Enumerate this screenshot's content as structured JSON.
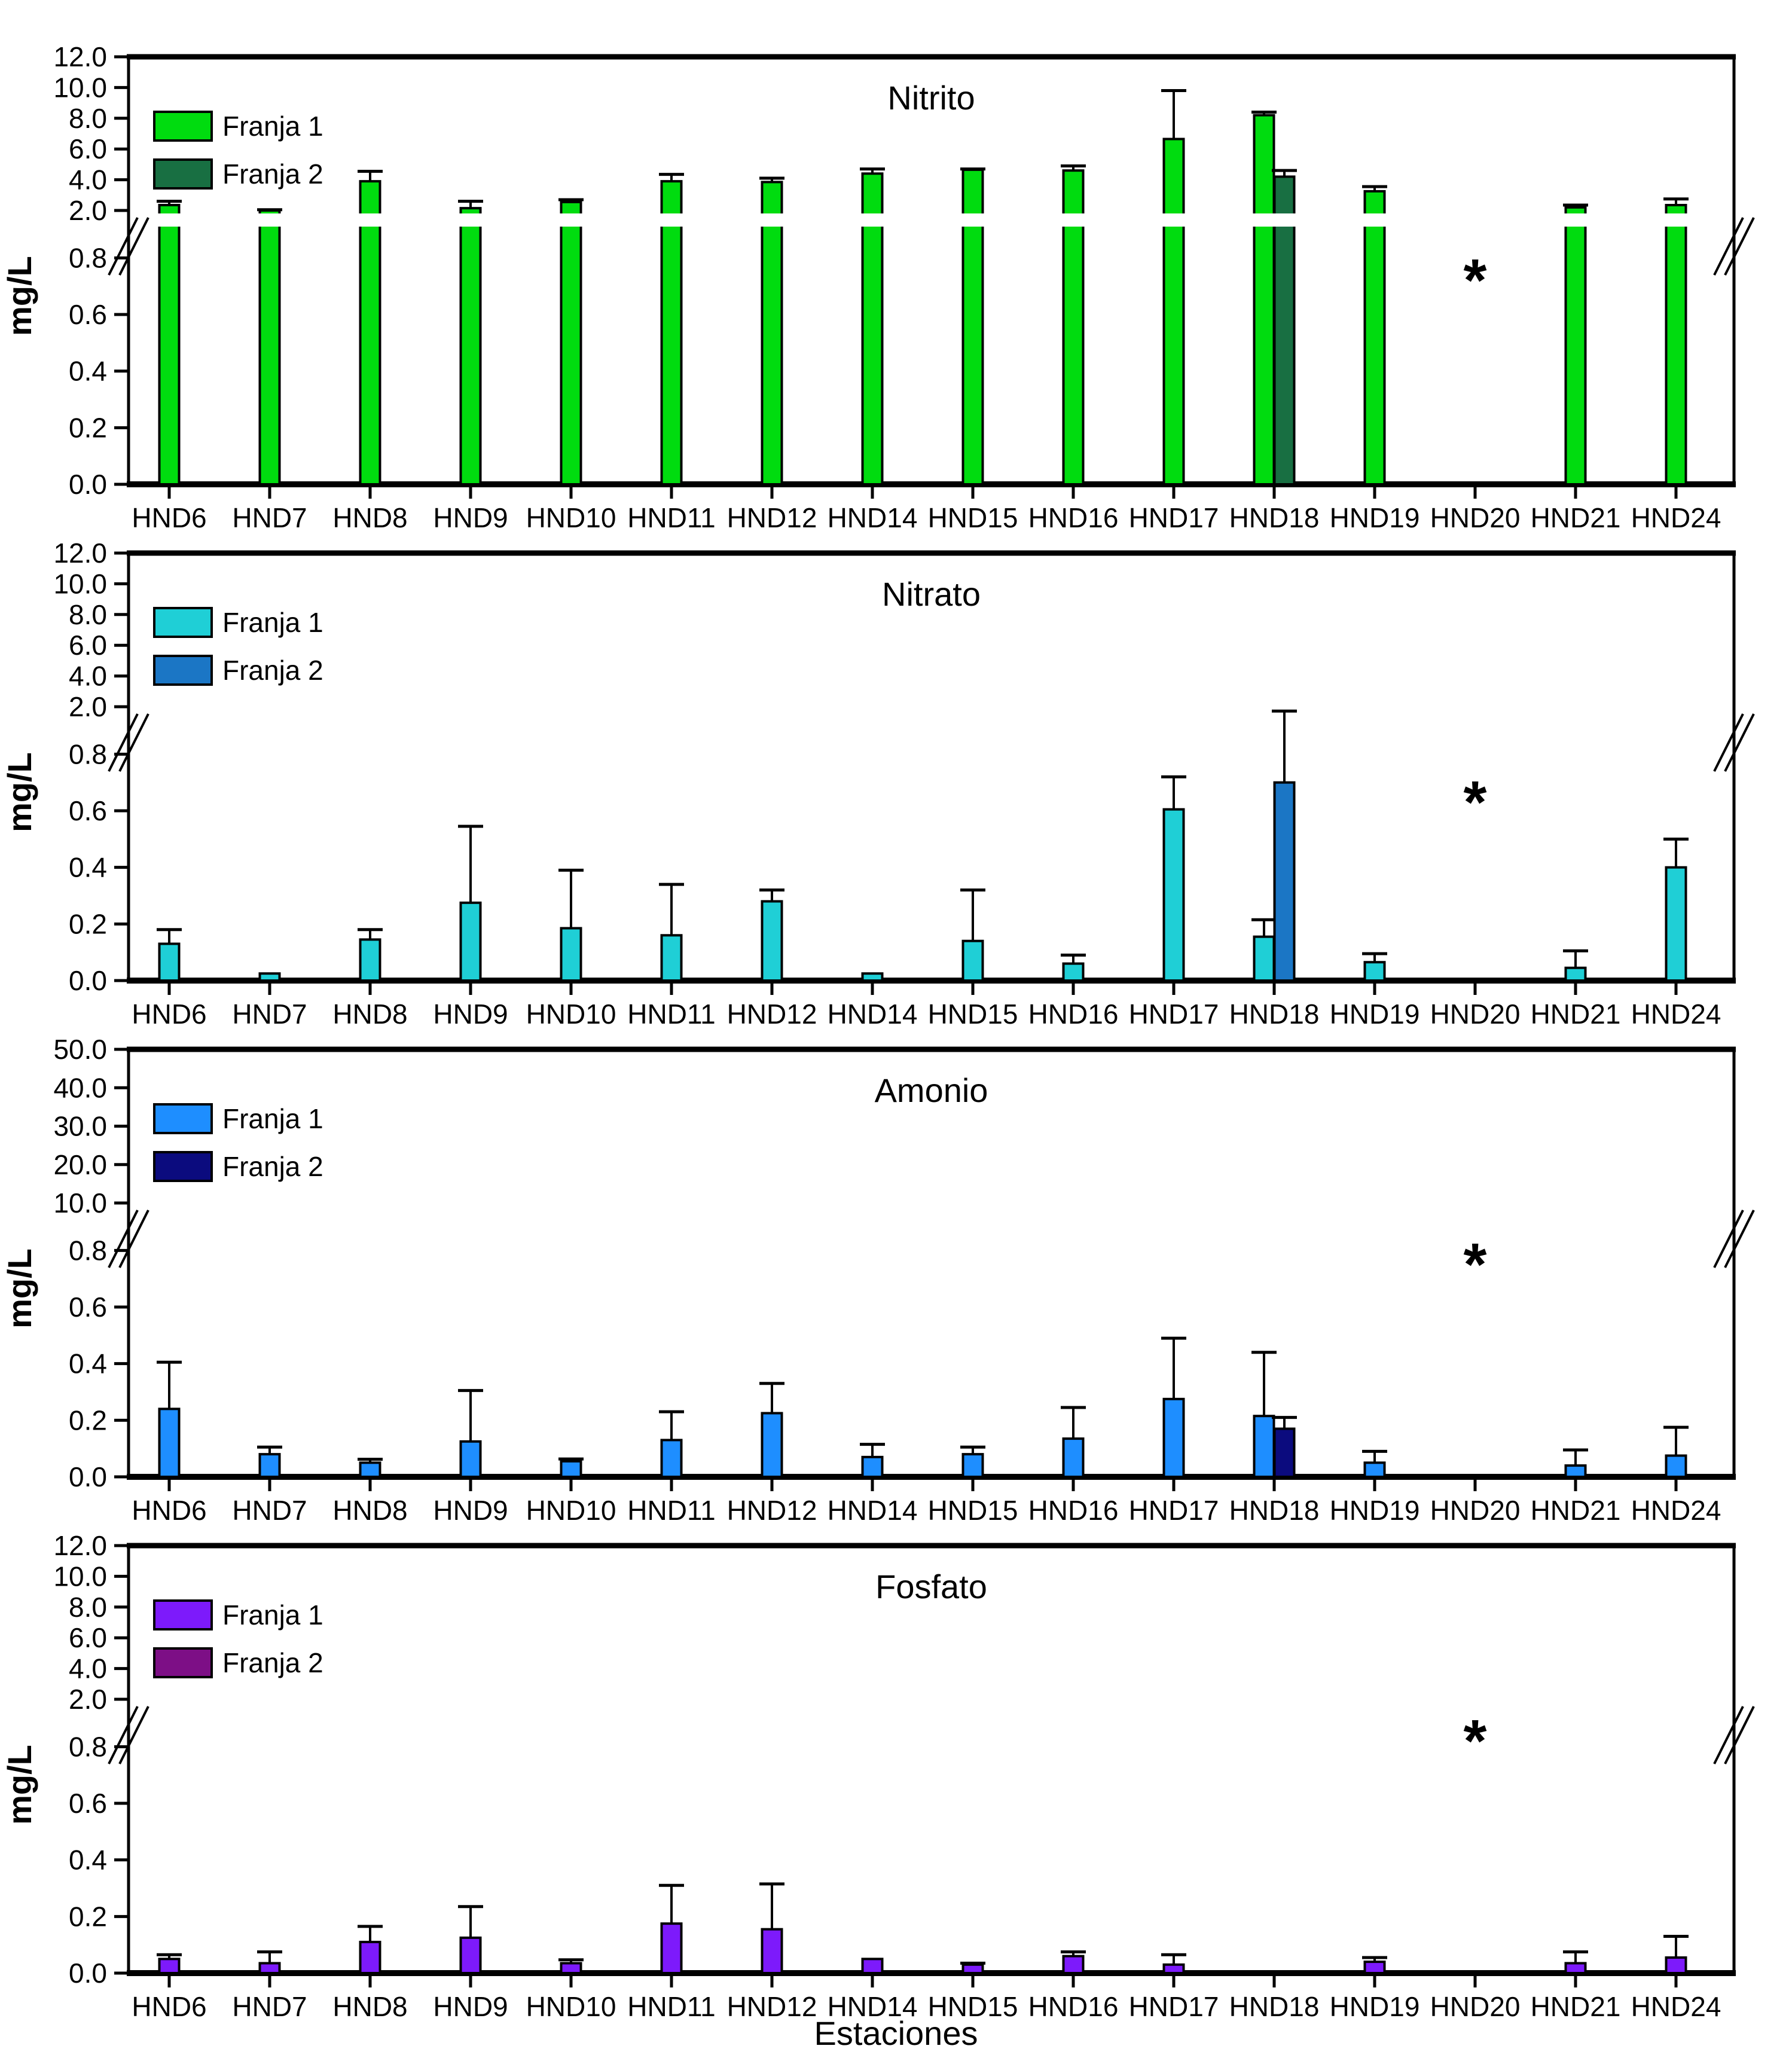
{
  "figure": {
    "background": "#ffffff",
    "xlabel": "Estaciones",
    "ylabel": "mg/L",
    "missing_symbol": "*"
  },
  "chart_data": [
    {
      "type": "bar",
      "title": "Nitrito",
      "ylabel": "mg/L",
      "categories": [
        "HND6",
        "HND7",
        "HND8",
        "HND9",
        "HND10",
        "HND11",
        "HND12",
        "HND14",
        "HND15",
        "HND16",
        "HND17",
        "HND18",
        "HND19",
        "HND20",
        "HND21",
        "HND24"
      ],
      "y_axis": {
        "broken": true,
        "upper_range": [
          2.0,
          12.0
        ],
        "upper_ticks": [
          12.0,
          10.0,
          8.0,
          6.0,
          4.0,
          2.0
        ],
        "lower_range": [
          0.0,
          0.9
        ],
        "lower_ticks": [
          0.8,
          0.6,
          0.4,
          0.2,
          0.0
        ]
      },
      "legend": {
        "position": "top-left",
        "entries": [
          "Franja 1",
          "Franja 2"
        ]
      },
      "series": [
        {
          "name": "Franja 1",
          "color": "#00DC0F",
          "values": [
            2.35,
            2.0,
            3.9,
            2.15,
            2.55,
            3.9,
            3.85,
            4.4,
            4.65,
            4.6,
            6.65,
            8.2,
            3.25,
            null,
            2.2,
            2.35
          ],
          "errors": [
            0.25,
            0.05,
            0.65,
            0.45,
            0.15,
            0.45,
            0.25,
            0.3,
            0.05,
            0.3,
            3.15,
            0.2,
            0.3,
            null,
            0.15,
            0.4
          ]
        },
        {
          "name": "Franja 2",
          "color": "#186F42",
          "values": [
            null,
            null,
            null,
            null,
            null,
            null,
            null,
            null,
            null,
            null,
            null,
            4.2,
            null,
            null,
            null,
            null
          ],
          "errors": [
            null,
            null,
            null,
            null,
            null,
            null,
            null,
            null,
            null,
            null,
            null,
            0.4,
            null,
            null,
            null,
            null
          ]
        }
      ],
      "no_data_marker": {
        "category": "HND20",
        "symbol": "*",
        "y": 0.72
      }
    },
    {
      "type": "bar",
      "title": "Nitrato",
      "ylabel": "mg/L",
      "categories": [
        "HND6",
        "HND7",
        "HND8",
        "HND9",
        "HND10",
        "HND11",
        "HND12",
        "HND14",
        "HND15",
        "HND16",
        "HND17",
        "HND18",
        "HND19",
        "HND20",
        "HND21",
        "HND24"
      ],
      "y_axis": {
        "broken": true,
        "upper_range": [
          2.0,
          12.0
        ],
        "upper_ticks": [
          12.0,
          10.0,
          8.0,
          6.0,
          4.0,
          2.0
        ],
        "lower_range": [
          0.0,
          0.9
        ],
        "lower_ticks": [
          0.8,
          0.6,
          0.4,
          0.2,
          0.0
        ]
      },
      "legend": {
        "position": "top-left",
        "entries": [
          "Franja 1",
          "Franja 2"
        ]
      },
      "series": [
        {
          "name": "Franja 1",
          "color": "#1FCFD6",
          "values": [
            0.13,
            0.025,
            0.145,
            0.275,
            0.185,
            0.16,
            0.28,
            0.025,
            0.14,
            0.06,
            0.605,
            0.155,
            0.065,
            null,
            0.045,
            0.4
          ],
          "errors": [
            0.05,
            0,
            0.035,
            0.27,
            0.205,
            0.18,
            0.04,
            0,
            0.18,
            0.03,
            0.115,
            0.06,
            0.03,
            null,
            0.06,
            0.1
          ]
        },
        {
          "name": "Franja 2",
          "color": "#1B76C5",
          "values": [
            null,
            null,
            null,
            null,
            null,
            null,
            null,
            null,
            null,
            null,
            null,
            0.7,
            null,
            null,
            null,
            null
          ],
          "errors": [
            null,
            null,
            null,
            null,
            null,
            null,
            null,
            null,
            null,
            null,
            null,
            1.05,
            null,
            null,
            null,
            null
          ]
        }
      ],
      "no_data_marker": {
        "category": "HND20",
        "symbol": "*",
        "y": 0.63
      }
    },
    {
      "type": "bar",
      "title": "Amonio",
      "ylabel": "mg/L",
      "categories": [
        "HND6",
        "HND7",
        "HND8",
        "HND9",
        "HND10",
        "HND11",
        "HND12",
        "HND14",
        "HND15",
        "HND16",
        "HND17",
        "HND18",
        "HND19",
        "HND20",
        "HND21",
        "HND24"
      ],
      "y_axis": {
        "broken": true,
        "upper_range": [
          10.0,
          50.0
        ],
        "upper_ticks": [
          50.0,
          40.0,
          30.0,
          20.0,
          10.0
        ],
        "lower_range": [
          0.0,
          0.9
        ],
        "lower_ticks": [
          0.8,
          0.6,
          0.4,
          0.2,
          0.0
        ]
      },
      "legend": {
        "position": "top-left",
        "entries": [
          "Franja 1",
          "Franja 2"
        ]
      },
      "series": [
        {
          "name": "Franja 1",
          "color": "#1E8EFF",
          "values": [
            0.24,
            0.08,
            0.05,
            0.125,
            0.055,
            0.13,
            0.225,
            0.07,
            0.08,
            0.135,
            0.275,
            0.215,
            0.05,
            null,
            0.04,
            0.075
          ],
          "errors": [
            0.165,
            0.025,
            0.012,
            0.18,
            0.008,
            0.1,
            0.105,
            0.045,
            0.025,
            0.11,
            0.215,
            0.225,
            0.04,
            null,
            0.055,
            0.1
          ]
        },
        {
          "name": "Franja 2",
          "color": "#0B0B7E",
          "values": [
            null,
            null,
            null,
            null,
            null,
            null,
            null,
            null,
            null,
            null,
            null,
            0.17,
            null,
            null,
            null,
            null
          ],
          "errors": [
            null,
            null,
            null,
            null,
            null,
            null,
            null,
            null,
            null,
            null,
            null,
            0.04,
            null,
            null,
            null,
            null
          ]
        }
      ],
      "no_data_marker": {
        "category": "HND20",
        "symbol": "*",
        "y": 0.75
      }
    },
    {
      "type": "bar",
      "title": "Fosfato",
      "ylabel": "mg/L",
      "categories": [
        "HND6",
        "HND7",
        "HND8",
        "HND9",
        "HND10",
        "HND11",
        "HND12",
        "HND14",
        "HND15",
        "HND16",
        "HND17",
        "HND18",
        "HND19",
        "HND20",
        "HND21",
        "HND24"
      ],
      "y_axis": {
        "broken": true,
        "upper_range": [
          2.0,
          12.0
        ],
        "upper_ticks": [
          12.0,
          10.0,
          8.0,
          6.0,
          4.0,
          2.0
        ],
        "lower_range": [
          0.0,
          0.9
        ],
        "lower_ticks": [
          0.8,
          0.6,
          0.4,
          0.2,
          0.0
        ]
      },
      "legend": {
        "position": "top-left",
        "entries": [
          "Franja 1",
          "Franja 2"
        ]
      },
      "series": [
        {
          "name": "Franja 1",
          "color": "#7D1AFB",
          "values": [
            0.05,
            0.035,
            0.11,
            0.125,
            0.035,
            0.175,
            0.155,
            0.05,
            0.03,
            0.06,
            0.03,
            null,
            0.04,
            null,
            0.035,
            0.055
          ],
          "errors": [
            0.015,
            0.04,
            0.055,
            0.11,
            0.012,
            0.135,
            0.16,
            0,
            0.005,
            0.015,
            0.035,
            null,
            0.015,
            null,
            0.04,
            0.075
          ]
        },
        {
          "name": "Franja 2",
          "color": "#7D0F86",
          "values": [
            null,
            null,
            null,
            null,
            null,
            null,
            null,
            null,
            null,
            null,
            null,
            null,
            null,
            null,
            null,
            null
          ],
          "errors": [
            null,
            null,
            null,
            null,
            null,
            null,
            null,
            null,
            null,
            null,
            null,
            null,
            null,
            null,
            null,
            null
          ]
        }
      ],
      "no_data_marker": {
        "category": "HND20",
        "symbol": "*",
        "y": 0.82
      }
    }
  ]
}
